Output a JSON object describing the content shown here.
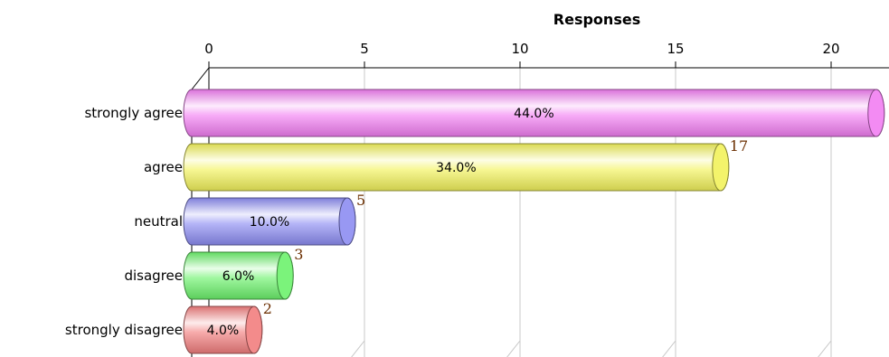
{
  "chart_data": {
    "type": "bar",
    "orientation": "horizontal",
    "title": "Responses",
    "x_axis_position": "top",
    "xlim": [
      0,
      22
    ],
    "x_ticks": [
      0,
      5,
      10,
      15,
      20
    ],
    "grid": true,
    "categories": [
      "strongly agree",
      "agree",
      "neutral",
      "disagree",
      "strongly disagree"
    ],
    "values": [
      22,
      17,
      5,
      3,
      2
    ],
    "percent_labels": [
      "44.0%",
      "34.0%",
      "10.0%",
      "6.0%",
      "4.0%"
    ],
    "value_labels": [
      "",
      "17",
      "5",
      "3",
      "2"
    ],
    "colors": [
      "#f27ef2",
      "#f2f25a",
      "#8c8cf2",
      "#6cf26c",
      "#f27e7e"
    ]
  }
}
